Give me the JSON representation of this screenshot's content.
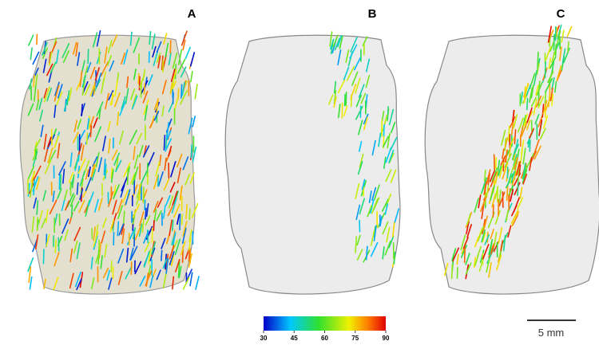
{
  "panels": [
    {
      "label": "A"
    },
    {
      "label": "B"
    },
    {
      "label": "C"
    }
  ],
  "colorbar": {
    "lim": [
      30,
      90
    ],
    "ticks": [
      30,
      45,
      60,
      75,
      90
    ]
  },
  "scale_bar": {
    "label": "5 mm"
  }
}
